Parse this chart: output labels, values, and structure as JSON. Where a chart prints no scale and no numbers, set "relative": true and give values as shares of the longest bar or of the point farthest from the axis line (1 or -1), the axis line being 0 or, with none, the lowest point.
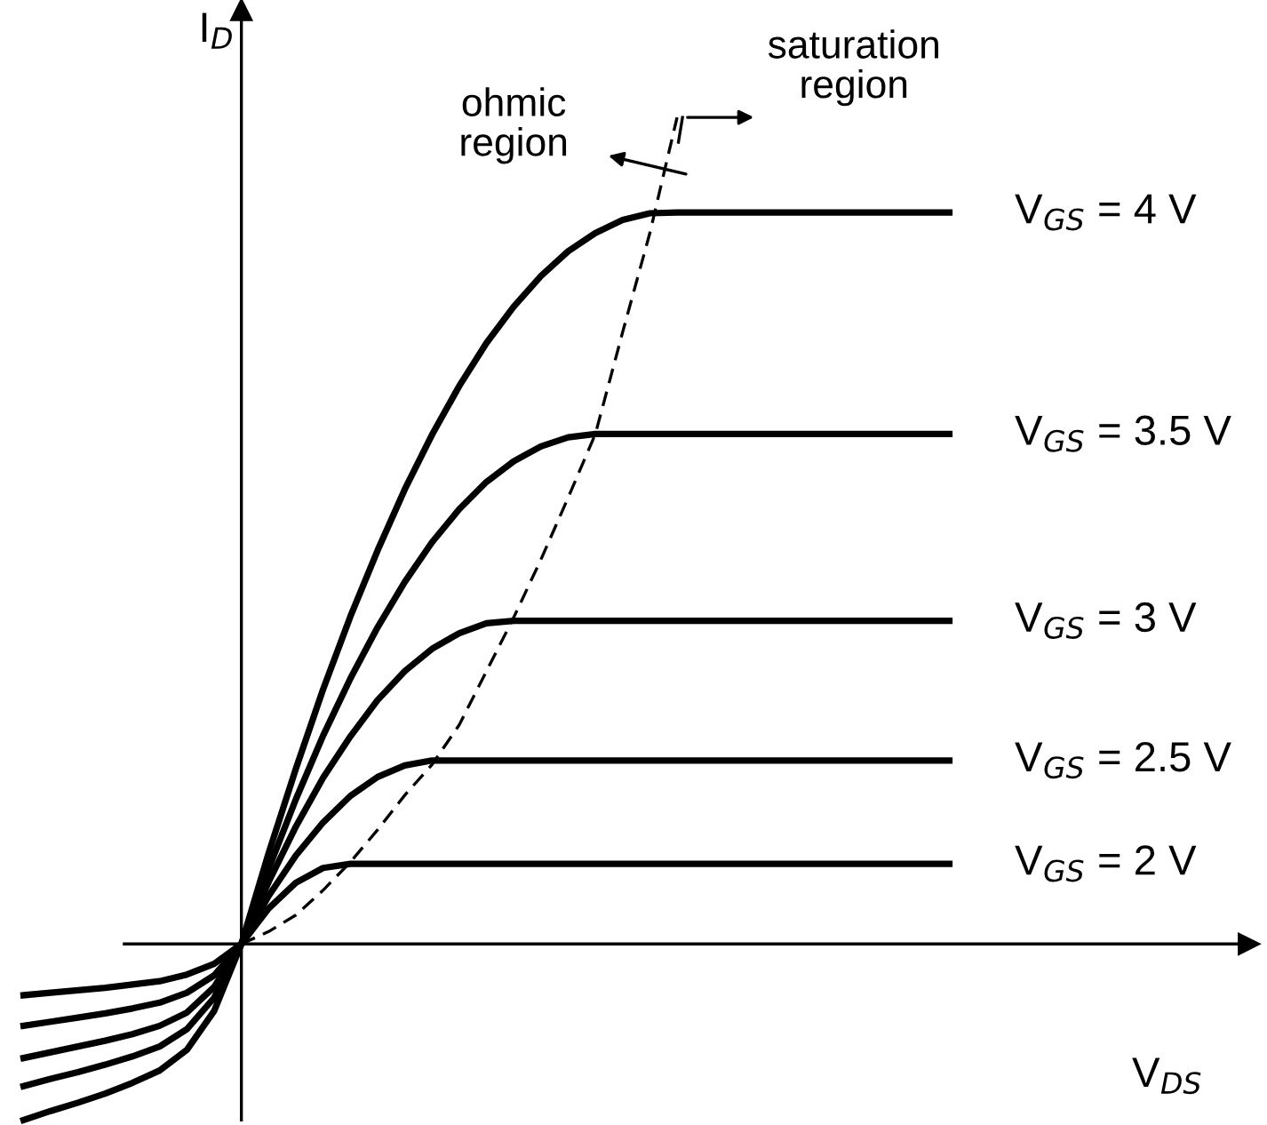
{
  "chart_data": {
    "type": "line",
    "relative": true,
    "xlabel": "V$_{DS}$",
    "ylabel": "I$_{D}$",
    "categories": [
      null,
      null,
      null,
      null,
      null,
      null,
      null,
      null,
      null,
      null,
      null,
      null,
      null,
      null,
      null,
      null,
      null,
      null,
      null,
      null,
      null,
      null,
      null,
      null,
      null,
      null,
      null,
      null,
      null,
      null,
      null,
      null,
      null,
      null,
      null
    ],
    "series": [
      {
        "name": "V$_{GS}$ = 4 V",
        "color": "#000000",
        "values": [
          -0.213,
          -0.202,
          -0.192,
          -0.181,
          -0.168,
          -0.153,
          -0.128,
          -0.081,
          0,
          0.11,
          0.212,
          0.308,
          0.396,
          0.476,
          0.55,
          0.616,
          0.675,
          0.727,
          0.771,
          0.808,
          0.838,
          0.86,
          0.876,
          0.884,
          0.885,
          0.885,
          0.885,
          0.885,
          0.885,
          0.885,
          0.885,
          0.885,
          0.885,
          0.885,
          0.885
        ]
      },
      {
        "name": "V$_{GS}$ = 3.5 V",
        "color": "#000000",
        "values": [
          -0.172,
          -0.163,
          -0.155,
          -0.146,
          -0.136,
          -0.124,
          -0.103,
          -0.065,
          0,
          0.091,
          0.175,
          0.252,
          0.321,
          0.383,
          0.438,
          0.486,
          0.526,
          0.559,
          0.584,
          0.602,
          0.613,
          0.617,
          0.617,
          0.617,
          0.617,
          0.617,
          0.617,
          0.617,
          0.617,
          0.617,
          0.617,
          0.617,
          0.617,
          0.617,
          0.617
        ]
      },
      {
        "name": "V$_{GS}$ = 3 V",
        "color": "#000000",
        "values": [
          -0.138,
          -0.131,
          -0.124,
          -0.117,
          -0.109,
          -0.099,
          -0.083,
          -0.052,
          0,
          0.075,
          0.142,
          0.201,
          0.251,
          0.295,
          0.33,
          0.357,
          0.376,
          0.388,
          0.391,
          0.391,
          0.391,
          0.391,
          0.391,
          0.391,
          0.391,
          0.391,
          0.391,
          0.391,
          0.391,
          0.391,
          0.391,
          0.391,
          0.391,
          0.391,
          0.391
        ]
      },
      {
        "name": "V$_{GS}$ = 2.5 V",
        "color": "#000000",
        "values": [
          -0.099,
          -0.094,
          -0.089,
          -0.084,
          -0.078,
          -0.071,
          -0.059,
          -0.038,
          0,
          0.058,
          0.107,
          0.147,
          0.179,
          0.202,
          0.216,
          0.222,
          0.222,
          0.222,
          0.222,
          0.222,
          0.222,
          0.222,
          0.222,
          0.222,
          0.222,
          0.222,
          0.222,
          0.222,
          0.222,
          0.222,
          0.222,
          0.222,
          0.222,
          0.222,
          0.222
        ]
      },
      {
        "name": "V$_{GS}$ = 2 V",
        "color": "#000000",
        "values": [
          -0.062,
          -0.059,
          -0.056,
          -0.053,
          -0.049,
          -0.045,
          -0.037,
          -0.024,
          0,
          0.043,
          0.074,
          0.092,
          0.097,
          0.097,
          0.097,
          0.097,
          0.097,
          0.097,
          0.097,
          0.097,
          0.097,
          0.097,
          0.097,
          0.097,
          0.097,
          0.097,
          0.097,
          0.097,
          0.097,
          0.097,
          0.097,
          0.097,
          0.097,
          0.097,
          0.097
        ]
      },
      {
        "color": "#000000",
        "line_style": "dashed",
        "values": [
          null,
          null,
          null,
          null,
          null,
          null,
          null,
          null,
          0,
          0.015,
          0.035,
          0.065,
          0.099,
          0.138,
          0.18,
          0.217,
          0.265,
          0.33,
          0.395,
          0.465,
          0.54,
          0.617,
          0.74,
          0.86,
          1.0,
          null,
          null,
          null,
          null,
          null,
          null,
          null,
          null,
          null,
          null
        ]
      }
    ],
    "annotations": [
      "ohmic\nregion",
      "saturation\nregion"
    ],
    "legend": false,
    "marker": "none",
    "line_style": "solid"
  }
}
